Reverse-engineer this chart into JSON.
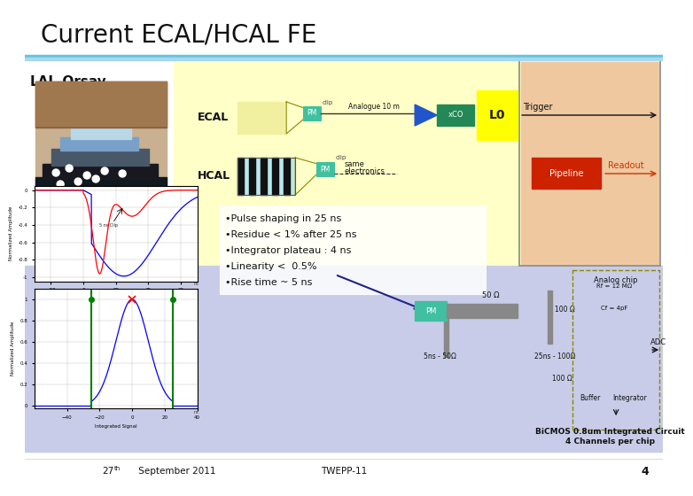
{
  "title": "Current ECAL/HCAL FE",
  "subtitle": "LAL-Orsay",
  "bg_color": "#ffffff",
  "title_bar_color": "#7ecfd8",
  "content_bg_yellow": "#ffffc8",
  "content_bg_blue": "#c8cce8",
  "content_bg_peach": "#f0c8a0",
  "bullet_points": [
    "•Pulse shaping in 25 ns",
    "•Residue < 1% after 25 ns",
    "•Integrator plateau : 4 ns",
    "•Linearity <  0.5%",
    "•Rise time ~ 5 ns"
  ],
  "footer_left": "27th September 2011",
  "footer_center": "TWEPP-11",
  "footer_right_line1": "BiCMOS 0.8um Integrated Circuit",
  "footer_right_line2": "4 Channels per chip",
  "footer_page": "4",
  "readout_text": "Readout",
  "trigger_text": "Trigger",
  "ecal_text": "ECAL",
  "hcal_text": "HCAL",
  "pm_color": "#40c0a0",
  "l0_color": "#ffff00",
  "pipeline_color": "#cc2200",
  "adc_text": "ADC",
  "pm_label": "PM",
  "lo_label": "L0",
  "pipeline_label": "Pipeline",
  "analogue_text": "Analogue 10 m",
  "same_electronics_line1": "same",
  "same_electronics_line2": "electronics",
  "analog_chip": "Analog chip",
  "xco_color": "#228855",
  "arrow_color": "#2244aa",
  "clip_label": "clip",
  "fifty_ohm": "50 Ω",
  "hundred_ohm1": "100 Ω",
  "buffer_text": "Buffer",
  "integrator_text": "Integrator"
}
